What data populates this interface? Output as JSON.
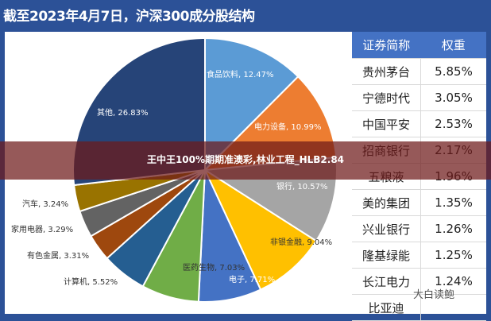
{
  "title": "截至2023年4月7日，沪深300成分股结构",
  "overlay_text": "王中王100%期期准澳彩,林业工程_HLB2.84",
  "watermark": "大白读鲍",
  "chart_data": {
    "type": "pie",
    "title": "截至2023年4月7日，沪深300成分股结构",
    "slices": [
      {
        "label": "食品饮料",
        "value": 12.47,
        "text": "食品饮料, 12.47%",
        "color": "#5b9bd5"
      },
      {
        "label": "电力设备",
        "value": 10.99,
        "text": "电力设备, 10.99%",
        "color": "#ed7d31"
      },
      {
        "label": "银行",
        "value": 10.57,
        "text": "银行, 10.57%",
        "color": "#a5a5a5"
      },
      {
        "label": "非银金融",
        "value": 9.04,
        "text": "非银金融, 9.04%",
        "color": "#ffc000"
      },
      {
        "label": "电子",
        "value": 7.71,
        "text": "电子, 7.71%",
        "color": "#4472c4"
      },
      {
        "label": "医药生物",
        "value": 7.03,
        "text": "医药生物, 7.03%",
        "color": "#70ad47"
      },
      {
        "label": "计算机",
        "value": 5.52,
        "text": "计算机, 5.52%",
        "color": "#255e91"
      },
      {
        "label": "有色金属",
        "value": 3.31,
        "text": "有色金属, 3.31%",
        "color": "#9e480e"
      },
      {
        "label": "家用电器",
        "value": 3.29,
        "text": "家用电器, 3.29%",
        "color": "#636363"
      },
      {
        "label": "汽车",
        "value": 3.24,
        "text": "汽车, 3.24%",
        "color": "#997300"
      },
      {
        "label": "其他",
        "value": 26.83,
        "text": "其他, 26.83%",
        "color": "#264478"
      }
    ]
  },
  "table": {
    "headers": [
      "证券简称",
      "权重"
    ],
    "rows": [
      [
        "贵州茅台",
        "5.85%"
      ],
      [
        "宁德时代",
        "3.05%"
      ],
      [
        "中国平安",
        "2.53%"
      ],
      [
        "招商银行",
        "2.17%"
      ],
      [
        "五粮液",
        "1.96%"
      ],
      [
        "美的集团",
        "1.35%"
      ],
      [
        "兴业银行",
        "1.26%"
      ],
      [
        "隆基绿能",
        "1.25%"
      ],
      [
        "长江电力",
        "1.24%"
      ],
      [
        "比亚迪",
        ""
      ]
    ]
  }
}
